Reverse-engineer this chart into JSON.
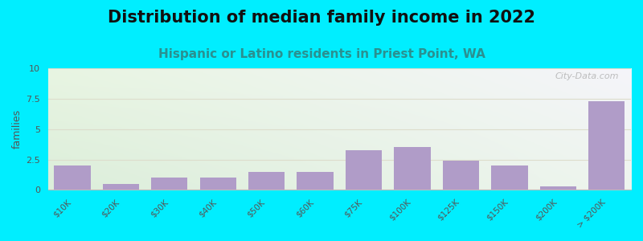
{
  "title": "Distribution of median family income in 2022",
  "subtitle": "Hispanic or Latino residents in Priest Point, WA",
  "ylabel": "families",
  "categories": [
    "$10K",
    "$20K",
    "$30K",
    "$40K",
    "$50K",
    "$60K",
    "$75K",
    "$100K",
    "$125K",
    "$150K",
    "$200K",
    "> $200K"
  ],
  "values": [
    2.0,
    0.5,
    1.0,
    1.0,
    1.5,
    1.5,
    3.25,
    3.5,
    2.4,
    2.0,
    0.3,
    7.3
  ],
  "bar_color": "#b09cc8",
  "background_color": "#00eeff",
  "plot_bg_color_topleft": "#e8f5e2",
  "plot_bg_color_topright": "#f5f5f8",
  "plot_bg_color_bottomleft": "#d8eed8",
  "plot_bg_color_bottomright": "#eef5ee",
  "grid_color": "#ddddcc",
  "ylim": [
    0,
    10
  ],
  "yticks": [
    0,
    2.5,
    5,
    7.5,
    10
  ],
  "title_fontsize": 15,
  "subtitle_fontsize": 11,
  "subtitle_color": "#2a9090",
  "ylabel_fontsize": 9,
  "watermark": "City-Data.com"
}
